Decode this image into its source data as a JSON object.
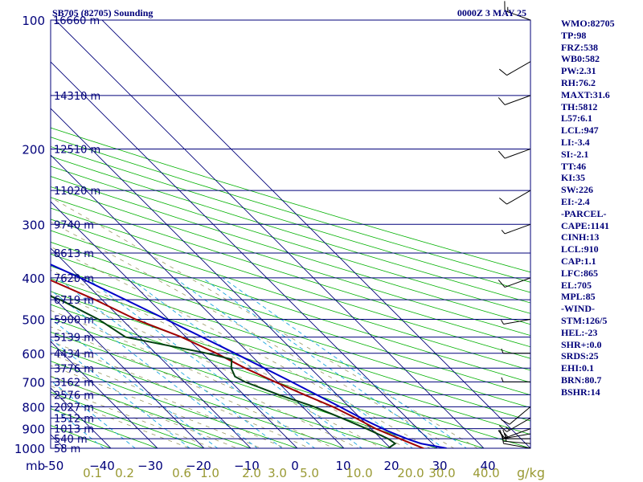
{
  "header": {
    "title": "SB705 (82705) Sounding",
    "datetime": "0000Z  3 MAY 25"
  },
  "colors": {
    "isobar": "#00007a",
    "isotherm": "#00007a",
    "dry_adiabat": "#00b000",
    "moist_adiabat": "#999966",
    "mixing_ratio": "#1aa5e0",
    "temperature": "#a00000",
    "dewpoint": "#004010",
    "parcel": "#0000c8",
    "wind_barb": "#000000",
    "label_navy": "#00007a",
    "label_olive": "#999933"
  },
  "stats": [
    "WMO:82705",
    "TP:98",
    "FRZ:538",
    "WB0:582",
    "PW:2.31",
    "RH:76.2",
    "MAXT:31.6",
    "TH:5812",
    "L57:6.1",
    "LCL:947",
    "LI:-3.4",
    "SI:-2.1",
    "TT:46",
    "KI:35",
    "SW:226",
    "EI:-2.4",
    "-PARCEL-",
    "CAPE:1141",
    "CINH:13",
    "LCL:910",
    "CAP:1.1",
    "LFC:865",
    "EL:705",
    "MPL:85",
    "-WIND-",
    "STM:126/5",
    "HEL:-23",
    "SHR+:0.0",
    "SRDS:25",
    "EHI:0.1",
    "BRN:80.7",
    "BSHR:14"
  ],
  "chart_data": {
    "type": "skew-t",
    "pressure_unit_label": "mb",
    "mixing_ratio_unit_label": "g/kg",
    "pressure_ticks": [
      100,
      200,
      300,
      400,
      500,
      600,
      700,
      800,
      900,
      1000
    ],
    "height_labels": [
      {
        "p": 150,
        "label": "14310 m"
      },
      {
        "p": 200,
        "label": "12510 m"
      },
      {
        "p": 250,
        "label": "11020 m"
      },
      {
        "p": 300,
        "label": "9740 m"
      },
      {
        "p": 350,
        "label": "8613 m"
      },
      {
        "p": 400,
        "label": "7620 m"
      },
      {
        "p": 450,
        "label": "6719 m"
      },
      {
        "p": 500,
        "label": "5900 m"
      },
      {
        "p": 550,
        "label": "5139 m"
      },
      {
        "p": 600,
        "label": "4434 m"
      },
      {
        "p": 650,
        "label": "3776 m"
      },
      {
        "p": 700,
        "label": "3162 m"
      },
      {
        "p": 750,
        "label": "2576 m"
      },
      {
        "p": 800,
        "label": "2027 m"
      },
      {
        "p": 850,
        "label": "1512 m"
      },
      {
        "p": 900,
        "label": "1013 m"
      },
      {
        "p": 950,
        "label": "540 m"
      },
      {
        "p": 1000,
        "label": "58 m"
      }
    ],
    "top_height_label": "16660 m",
    "temperature_ticks": [
      -50,
      -40,
      -30,
      -20,
      -10,
      0,
      10,
      20,
      30,
      40
    ],
    "temperature_tick_labels": [
      "-50",
      "−40",
      "−30",
      "−20",
      "−10",
      "0",
      "10",
      "20",
      "30",
      "40"
    ],
    "mixing_ratio_labels": [
      "0.1",
      "0.2",
      "0.6",
      "1.0",
      "2.0",
      "3.0",
      "5.0",
      "10.0",
      "20.0",
      "30.0",
      "40.0"
    ],
    "temperature_profile": [
      {
        "p": 1008,
        "t": 26
      },
      {
        "p": 1000,
        "t": 27
      },
      {
        "p": 975,
        "t": 25.5
      },
      {
        "p": 950,
        "t": 24
      },
      {
        "p": 925,
        "t": 22.5
      },
      {
        "p": 900,
        "t": 21
      },
      {
        "p": 850,
        "t": 19
      },
      {
        "p": 800,
        "t": 16.5
      },
      {
        "p": 750,
        "t": 13
      },
      {
        "p": 700,
        "t": 9.5
      },
      {
        "p": 650,
        "t": 6
      },
      {
        "p": 600,
        "t": 3
      },
      {
        "p": 550,
        "t": -1
      },
      {
        "p": 500,
        "t": -7
      },
      {
        "p": 450,
        "t": -11.5
      },
      {
        "p": 400,
        "t": -17.5
      },
      {
        "p": 350,
        "t": -25
      },
      {
        "p": 300,
        "t": -33.5
      },
      {
        "p": 250,
        "t": -44
      },
      {
        "p": 200,
        "t": -55
      },
      {
        "p": 160,
        "t": -65
      },
      {
        "p": 150,
        "t": -70
      },
      {
        "p": 130,
        "t": -75
      },
      {
        "p": 120,
        "t": -78
      },
      {
        "p": 110,
        "t": -78
      },
      {
        "p": 100,
        "t": -79
      }
    ],
    "dewpoint_profile": [
      {
        "p": 1000,
        "t": 19.5
      },
      {
        "p": 975,
        "t": 22
      },
      {
        "p": 950,
        "t": 21.5
      },
      {
        "p": 900,
        "t": 19
      },
      {
        "p": 850,
        "t": 16
      },
      {
        "p": 800,
        "t": 12.5
      },
      {
        "p": 750,
        "t": 7.5
      },
      {
        "p": 700,
        "t": 3
      },
      {
        "p": 680,
        "t": 2
      },
      {
        "p": 650,
        "t": 3
      },
      {
        "p": 620,
        "t": 5
      },
      {
        "p": 600,
        "t": 1
      },
      {
        "p": 550,
        "t": -13
      },
      {
        "p": 500,
        "t": -15
      },
      {
        "p": 450,
        "t": -19
      },
      {
        "p": 400,
        "t": -27
      },
      {
        "p": 350,
        "t": -37
      },
      {
        "p": 300,
        "t": -48
      },
      {
        "p": 250,
        "t": -58
      },
      {
        "p": 200,
        "t": -70
      },
      {
        "p": 150,
        "t": -82
      },
      {
        "p": 140,
        "t": -84
      },
      {
        "p": 125,
        "t": -86
      },
      {
        "p": 115,
        "t": -87
      },
      {
        "p": 100,
        "t": -90
      }
    ],
    "parcel_profile": [
      {
        "p": 1000,
        "t": 32
      },
      {
        "p": 975,
        "t": 27.5
      },
      {
        "p": 950,
        "t": 25.5
      },
      {
        "p": 910,
        "t": 23
      },
      {
        "p": 865,
        "t": 20.8
      },
      {
        "p": 800,
        "t": 18
      },
      {
        "p": 700,
        "t": 13
      },
      {
        "p": 600,
        "t": 7
      },
      {
        "p": 500,
        "t": -0.5
      },
      {
        "p": 400,
        "t": -10
      },
      {
        "p": 350,
        "t": -16.5
      },
      {
        "p": 300,
        "t": -25
      },
      {
        "p": 250,
        "t": -35
      },
      {
        "p": 200,
        "t": -49
      },
      {
        "p": 150,
        "t": -65
      },
      {
        "p": 120,
        "t": -75
      }
    ],
    "wind_barbs": [
      {
        "p": 1000,
        "dir": 280,
        "spd": 10
      },
      {
        "p": 975,
        "dir": 275,
        "spd": 15
      },
      {
        "p": 950,
        "dir": 270,
        "spd": 20
      },
      {
        "p": 925,
        "dir": 260,
        "spd": 15
      },
      {
        "p": 900,
        "dir": 250,
        "spd": 15
      },
      {
        "p": 850,
        "dir": 240,
        "spd": 15
      },
      {
        "p": 800,
        "dir": 230,
        "spd": 10
      },
      {
        "p": 700,
        "dir": 270,
        "spd": 5
      },
      {
        "p": 600,
        "dir": 270,
        "spd": 5
      },
      {
        "p": 500,
        "dir": 260,
        "spd": 5
      },
      {
        "p": 400,
        "dir": 250,
        "spd": 10
      },
      {
        "p": 300,
        "dir": 250,
        "spd": 5
      },
      {
        "p": 250,
        "dir": 240,
        "spd": 10
      },
      {
        "p": 200,
        "dir": 250,
        "spd": 10
      },
      {
        "p": 150,
        "dir": 250,
        "spd": 10
      },
      {
        "p": 125,
        "dir": 240,
        "spd": 10
      },
      {
        "p": 100,
        "dir": 290,
        "spd": 15
      }
    ]
  }
}
